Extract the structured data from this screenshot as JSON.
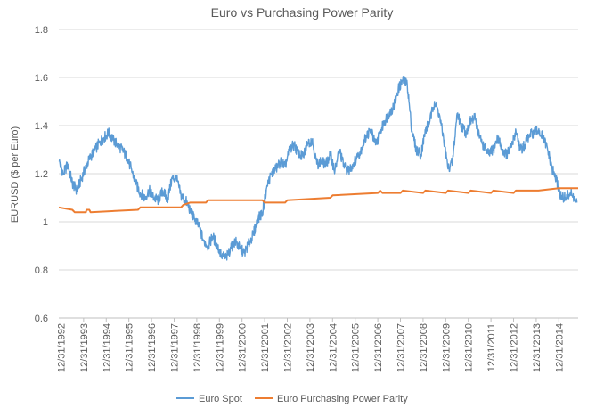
{
  "chart_data": {
    "type": "line",
    "title": "Euro vs Purchasing Power Parity",
    "xlabel": "",
    "ylabel": "EURUSD ($ per Euro)",
    "ylim": [
      0.6,
      1.8
    ],
    "yticks": [
      "0.6",
      "0.8",
      "1",
      "1.2",
      "1.4",
      "1.6",
      "1.8"
    ],
    "xticks": [
      "12/31/1992",
      "12/31/1993",
      "12/31/1994",
      "12/31/1995",
      "12/31/1996",
      "12/31/1997",
      "12/31/1998",
      "12/31/1999",
      "12/31/2000",
      "12/31/2001",
      "12/31/2002",
      "12/31/2003",
      "12/31/2004",
      "12/31/2005",
      "12/31/2006",
      "12/31/2007",
      "12/31/2008",
      "12/31/2009",
      "12/31/2010",
      "12/31/2011",
      "12/31/2012",
      "12/31/2013",
      "12/31/2014"
    ],
    "xlim": [
      1992.9,
      2015.85
    ],
    "grid": true,
    "legend_position": "bottom",
    "series": [
      {
        "name": "Euro Spot",
        "color": "#5b9bd5",
        "x": [
          1992.92,
          1993.1,
          1993.3,
          1993.5,
          1993.7,
          1993.9,
          1994.1,
          1994.3,
          1994.5,
          1994.7,
          1994.9,
          1995.1,
          1995.3,
          1995.5,
          1995.7,
          1995.9,
          1996.1,
          1996.3,
          1996.5,
          1996.7,
          1996.9,
          1997.1,
          1997.3,
          1997.5,
          1997.7,
          1997.9,
          1998.1,
          1998.3,
          1998.5,
          1998.7,
          1998.9,
          1999.1,
          1999.3,
          1999.5,
          1999.7,
          1999.9,
          2000.1,
          2000.3,
          2000.5,
          2000.7,
          2000.9,
          2001.1,
          2001.3,
          2001.5,
          2001.7,
          2001.9,
          2002.1,
          2002.3,
          2002.5,
          2002.7,
          2002.9,
          2003.1,
          2003.3,
          2003.5,
          2003.7,
          2003.9,
          2004.1,
          2004.3,
          2004.5,
          2004.7,
          2004.9,
          2005.1,
          2005.3,
          2005.5,
          2005.7,
          2005.9,
          2006.1,
          2006.3,
          2006.5,
          2006.7,
          2006.9,
          2007.1,
          2007.3,
          2007.5,
          2007.7,
          2007.9,
          2008.1,
          2008.3,
          2008.5,
          2008.7,
          2008.9,
          2009.1,
          2009.3,
          2009.5,
          2009.7,
          2009.9,
          2010.1,
          2010.3,
          2010.5,
          2010.7,
          2010.9,
          2011.1,
          2011.3,
          2011.5,
          2011.7,
          2011.9,
          2012.1,
          2012.3,
          2012.5,
          2012.7,
          2012.9,
          2013.1,
          2013.3,
          2013.5,
          2013.7,
          2013.9,
          2014.1,
          2014.3,
          2014.5,
          2014.7,
          2014.9,
          2015.1,
          2015.3,
          2015.5,
          2015.8
        ],
        "y": [
          1.25,
          1.2,
          1.24,
          1.16,
          1.13,
          1.18,
          1.23,
          1.27,
          1.3,
          1.33,
          1.35,
          1.37,
          1.34,
          1.32,
          1.3,
          1.27,
          1.22,
          1.16,
          1.12,
          1.1,
          1.13,
          1.1,
          1.09,
          1.13,
          1.09,
          1.18,
          1.18,
          1.11,
          1.09,
          1.05,
          1.01,
          0.98,
          0.92,
          0.9,
          0.94,
          0.9,
          0.86,
          0.85,
          0.89,
          0.92,
          0.89,
          0.87,
          0.91,
          0.95,
          1.01,
          1.04,
          1.15,
          1.2,
          1.22,
          1.25,
          1.23,
          1.3,
          1.32,
          1.28,
          1.27,
          1.33,
          1.34,
          1.24,
          1.25,
          1.24,
          1.28,
          1.21,
          1.3,
          1.23,
          1.21,
          1.24,
          1.27,
          1.31,
          1.36,
          1.38,
          1.32,
          1.37,
          1.42,
          1.45,
          1.48,
          1.55,
          1.59,
          1.57,
          1.38,
          1.3,
          1.28,
          1.38,
          1.42,
          1.5,
          1.45,
          1.35,
          1.22,
          1.25,
          1.45,
          1.4,
          1.37,
          1.42,
          1.43,
          1.35,
          1.31,
          1.28,
          1.3,
          1.35,
          1.3,
          1.28,
          1.31,
          1.38,
          1.3,
          1.32,
          1.36,
          1.37,
          1.38,
          1.35,
          1.3,
          1.22,
          1.17,
          1.1,
          1.1,
          1.12,
          1.08
        ]
      },
      {
        "name": "Euro Purchasing Power Parity",
        "color": "#ed7d31",
        "x": [
          1992.9,
          1993.5,
          1993.6,
          1994.1,
          1994.12,
          1994.25,
          1994.3,
          1996.4,
          1996.5,
          1998.3,
          1998.4,
          1998.7,
          1998.8,
          1999.4,
          1999.5,
          2001.9,
          2002.0,
          2002.9,
          2003.0,
          2004.9,
          2005.0,
          2007.0,
          2007.1,
          2007.2,
          2008.0,
          2008.1,
          2009.0,
          2009.1,
          2010.0,
          2010.1,
          2011.0,
          2011.1,
          2012.0,
          2012.1,
          2013.0,
          2013.1,
          2014.0,
          2014.1,
          2015.0,
          2015.85
        ],
        "y": [
          1.06,
          1.05,
          1.04,
          1.04,
          1.05,
          1.05,
          1.04,
          1.05,
          1.06,
          1.06,
          1.07,
          1.08,
          1.08,
          1.08,
          1.09,
          1.09,
          1.08,
          1.08,
          1.09,
          1.1,
          1.11,
          1.12,
          1.13,
          1.12,
          1.12,
          1.13,
          1.12,
          1.13,
          1.12,
          1.13,
          1.12,
          1.13,
          1.12,
          1.13,
          1.12,
          1.13,
          1.13,
          1.13,
          1.14,
          1.14
        ]
      }
    ]
  }
}
